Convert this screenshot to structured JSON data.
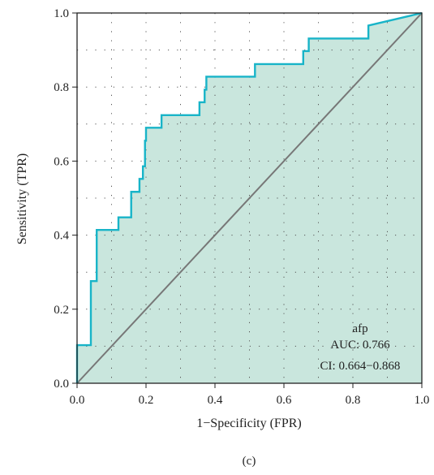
{
  "chart_data": {
    "type": "line",
    "title": "",
    "xlabel": "1−Specificity (FPR)",
    "ylabel": "Sensitivity (TPR)",
    "xlim": [
      0,
      1
    ],
    "ylim": [
      0,
      1
    ],
    "x_ticks": [
      "0.0",
      "0.2",
      "0.4",
      "0.6",
      "0.8",
      "1.0"
    ],
    "y_ticks": [
      "0.0",
      "0.2",
      "0.4",
      "0.6",
      "0.8",
      "1.0"
    ],
    "grid": "dotted",
    "series": [
      {
        "name": "afp",
        "color": "#18b4c8",
        "fill": "#c9e6dd",
        "points": [
          [
            0.0,
            0.0
          ],
          [
            0.0,
            0.103
          ],
          [
            0.04,
            0.103
          ],
          [
            0.04,
            0.276
          ],
          [
            0.057,
            0.276
          ],
          [
            0.057,
            0.414
          ],
          [
            0.12,
            0.414
          ],
          [
            0.12,
            0.448
          ],
          [
            0.157,
            0.448
          ],
          [
            0.157,
            0.517
          ],
          [
            0.181,
            0.517
          ],
          [
            0.181,
            0.552
          ],
          [
            0.191,
            0.552
          ],
          [
            0.191,
            0.586
          ],
          [
            0.197,
            0.586
          ],
          [
            0.197,
            0.655
          ],
          [
            0.2,
            0.655
          ],
          [
            0.2,
            0.69
          ],
          [
            0.245,
            0.69
          ],
          [
            0.245,
            0.724
          ],
          [
            0.355,
            0.724
          ],
          [
            0.355,
            0.759
          ],
          [
            0.37,
            0.759
          ],
          [
            0.37,
            0.793
          ],
          [
            0.375,
            0.793
          ],
          [
            0.375,
            0.828
          ],
          [
            0.516,
            0.828
          ],
          [
            0.516,
            0.862
          ],
          [
            0.656,
            0.862
          ],
          [
            0.656,
            0.897
          ],
          [
            0.672,
            0.897
          ],
          [
            0.672,
            0.931
          ],
          [
            0.845,
            0.931
          ],
          [
            0.845,
            0.966
          ],
          [
            1.0,
            1.0
          ]
        ]
      }
    ],
    "reference_line": {
      "from": [
        0,
        0
      ],
      "to": [
        1,
        1
      ],
      "color": "#777777"
    },
    "annotations": [
      "afp",
      "AUC: 0.766",
      "CI: 0.664−0.868"
    ],
    "panel_label": "(c)"
  }
}
